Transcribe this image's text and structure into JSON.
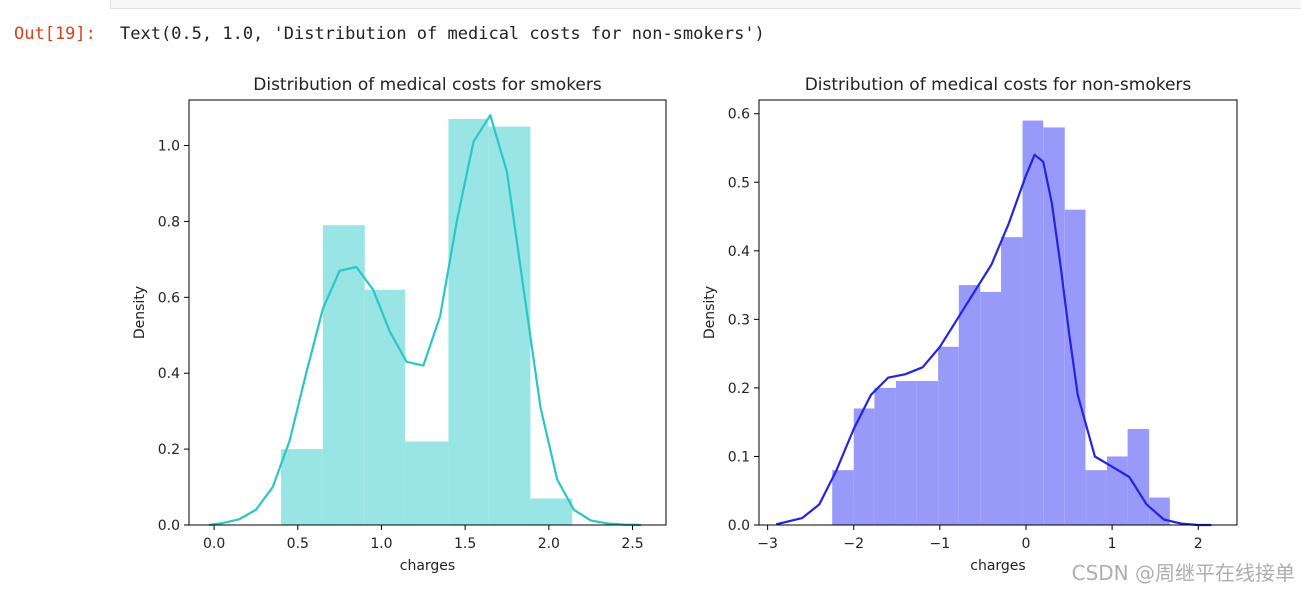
{
  "output": {
    "prompt": "Out[19]:",
    "text": "Text(0.5, 1.0, 'Distribution of medical costs for non-smokers')"
  },
  "watermark": "CSDN @周继平在线接单",
  "chart_data": [
    {
      "type": "histogram",
      "title": "Distribution of medical costs for smokers",
      "xlabel": "charges",
      "ylabel": "Density",
      "xlim": [
        -0.15,
        2.7
      ],
      "ylim": [
        0,
        1.12
      ],
      "xticks": [
        0.0,
        0.5,
        1.0,
        1.5,
        2.0,
        2.5
      ],
      "xtick_labels": [
        "0.0",
        "0.5",
        "1.0",
        "1.5",
        "2.0",
        "2.5"
      ],
      "yticks": [
        0.0,
        0.2,
        0.4,
        0.6,
        0.8,
        1.0
      ],
      "ytick_labels": [
        "0.0",
        "0.2",
        "0.4",
        "0.6",
        "0.8",
        "1.0"
      ],
      "bar_color": "#99e5e5",
      "line_color": "#2cc6c6",
      "bins": [
        {
          "x0": 0.4,
          "x1": 0.65,
          "density": 0.2
        },
        {
          "x0": 0.65,
          "x1": 0.9,
          "density": 0.79
        },
        {
          "x0": 0.9,
          "x1": 1.14,
          "density": 0.62
        },
        {
          "x0": 1.14,
          "x1": 1.4,
          "density": 0.22
        },
        {
          "x0": 1.4,
          "x1": 1.64,
          "density": 1.07
        },
        {
          "x0": 1.64,
          "x1": 1.89,
          "density": 1.05
        },
        {
          "x0": 1.89,
          "x1": 2.14,
          "density": 0.07
        }
      ],
      "kde": {
        "x": [
          -0.03,
          0.05,
          0.15,
          0.25,
          0.35,
          0.45,
          0.55,
          0.65,
          0.75,
          0.85,
          0.95,
          1.05,
          1.15,
          1.25,
          1.35,
          1.45,
          1.55,
          1.65,
          1.75,
          1.85,
          1.95,
          2.05,
          2.15,
          2.25,
          2.35,
          2.45,
          2.55
        ],
        "y": [
          0.0,
          0.005,
          0.015,
          0.04,
          0.1,
          0.22,
          0.4,
          0.57,
          0.67,
          0.68,
          0.62,
          0.51,
          0.43,
          0.42,
          0.55,
          0.8,
          1.01,
          1.08,
          0.93,
          0.62,
          0.31,
          0.12,
          0.04,
          0.012,
          0.004,
          0.001,
          0.0
        ]
      }
    },
    {
      "type": "histogram",
      "title": "Distribution of medical costs for non-smokers",
      "xlabel": "charges",
      "ylabel": "Density",
      "xlim": [
        -3.1,
        2.45
      ],
      "ylim": [
        0,
        0.62
      ],
      "xticks": [
        -3,
        -2,
        -1,
        0,
        1,
        2
      ],
      "xtick_labels": [
        "−3",
        "−2",
        "−1",
        "0",
        "1",
        "2"
      ],
      "yticks": [
        0.0,
        0.1,
        0.2,
        0.3,
        0.4,
        0.5,
        0.6
      ],
      "ytick_labels": [
        "0.0",
        "0.1",
        "0.2",
        "0.3",
        "0.4",
        "0.5",
        "0.6"
      ],
      "bar_color": "#9999fa",
      "line_color": "#2424e0",
      "bins": [
        {
          "x0": -2.25,
          "x1": -2.0,
          "density": 0.08
        },
        {
          "x0": -2.0,
          "x1": -1.76,
          "density": 0.17
        },
        {
          "x0": -1.76,
          "x1": -1.51,
          "density": 0.2
        },
        {
          "x0": -1.51,
          "x1": -1.27,
          "density": 0.21
        },
        {
          "x0": -1.27,
          "x1": -1.02,
          "density": 0.21
        },
        {
          "x0": -1.02,
          "x1": -0.78,
          "density": 0.26
        },
        {
          "x0": -0.78,
          "x1": -0.53,
          "density": 0.35
        },
        {
          "x0": -0.53,
          "x1": -0.29,
          "density": 0.34
        },
        {
          "x0": -0.29,
          "x1": -0.04,
          "density": 0.42
        },
        {
          "x0": -0.04,
          "x1": 0.2,
          "density": 0.59
        },
        {
          "x0": 0.2,
          "x1": 0.45,
          "density": 0.58
        },
        {
          "x0": 0.45,
          "x1": 0.69,
          "density": 0.46
        },
        {
          "x0": 0.69,
          "x1": 0.94,
          "density": 0.08
        },
        {
          "x0": 0.94,
          "x1": 1.18,
          "density": 0.1
        },
        {
          "x0": 1.18,
          "x1": 1.43,
          "density": 0.14
        },
        {
          "x0": 1.43,
          "x1": 1.67,
          "density": 0.04
        }
      ],
      "kde": {
        "x": [
          -2.9,
          -2.6,
          -2.4,
          -2.2,
          -2.0,
          -1.8,
          -1.6,
          -1.4,
          -1.2,
          -1.0,
          -0.8,
          -0.6,
          -0.4,
          -0.2,
          0.0,
          0.1,
          0.2,
          0.3,
          0.4,
          0.5,
          0.6,
          0.8,
          1.0,
          1.2,
          1.4,
          1.6,
          1.8,
          2.0,
          2.15
        ],
        "y": [
          0.001,
          0.01,
          0.03,
          0.08,
          0.14,
          0.19,
          0.215,
          0.22,
          0.23,
          0.26,
          0.3,
          0.34,
          0.38,
          0.44,
          0.51,
          0.54,
          0.53,
          0.47,
          0.38,
          0.28,
          0.19,
          0.1,
          0.085,
          0.07,
          0.03,
          0.008,
          0.002,
          0.0,
          0.0
        ]
      }
    }
  ]
}
